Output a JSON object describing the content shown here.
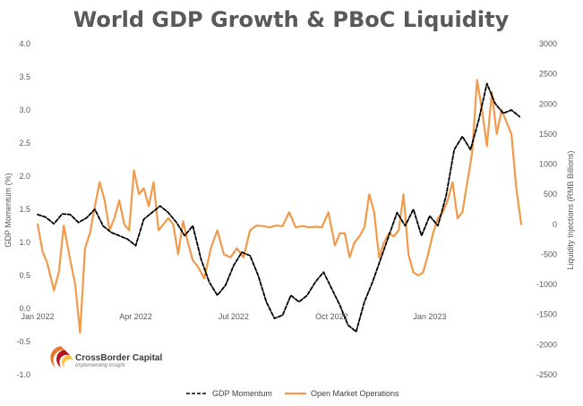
{
  "chart_data": {
    "type": "line",
    "title": "World GDP Growth & PBoC Liquidity",
    "ylabel_left": "GDP Momentum (%)",
    "ylabel_right": "Liquidity Injections (RMB Billions)",
    "ylim_left": [
      -1.0,
      4.0
    ],
    "ylim_right": [
      -2500,
      3000
    ],
    "yticks_left": [
      "4.0",
      "3.5",
      "3.0",
      "2.5",
      "2.0",
      "1.5",
      "1.0",
      "0.5",
      "0.0",
      "-0.5",
      "-1.0"
    ],
    "yticks_right": [
      "3000",
      "2500",
      "2000",
      "1500",
      "1000",
      "500",
      "0",
      "-500",
      "-1000",
      "-1500",
      "-2000",
      "-2500"
    ],
    "x_ticks": [
      "Jan 2022",
      "Apr 2022",
      "Jul 2022",
      "Oct 2022",
      "Jan 2023"
    ],
    "grid": false,
    "legend_position": "bottom",
    "series": [
      {
        "name": "GDP Momentum",
        "axis": "left",
        "color": "#000000",
        "style": "dashed",
        "points": [
          [
            0,
            1.42
          ],
          [
            0.25,
            1.38
          ],
          [
            0.5,
            1.28
          ],
          [
            0.75,
            1.43
          ],
          [
            1,
            1.42
          ],
          [
            1.25,
            1.3
          ],
          [
            1.5,
            1.37
          ],
          [
            1.75,
            1.5
          ],
          [
            2,
            1.25
          ],
          [
            2.25,
            1.15
          ],
          [
            2.5,
            1.1
          ],
          [
            2.75,
            1.05
          ],
          [
            3,
            0.95
          ],
          [
            3.25,
            1.35
          ],
          [
            3.5,
            1.45
          ],
          [
            3.75,
            1.55
          ],
          [
            4,
            1.45
          ],
          [
            4.25,
            1.3
          ],
          [
            4.5,
            1.1
          ],
          [
            4.75,
            1.25
          ],
          [
            5,
            0.75
          ],
          [
            5.25,
            0.4
          ],
          [
            5.5,
            0.2
          ],
          [
            5.75,
            0.35
          ],
          [
            6,
            0.65
          ],
          [
            6.25,
            0.85
          ],
          [
            6.5,
            0.8
          ],
          [
            6.75,
            0.5
          ],
          [
            7,
            0.1
          ],
          [
            7.25,
            -0.15
          ],
          [
            7.5,
            -0.1
          ],
          [
            7.75,
            0.2
          ],
          [
            8,
            0.1
          ],
          [
            8.25,
            0.2
          ],
          [
            8.5,
            0.4
          ],
          [
            8.75,
            0.55
          ],
          [
            9,
            0.3
          ],
          [
            9.25,
            0.05
          ],
          [
            9.5,
            -0.25
          ],
          [
            9.75,
            -0.35
          ],
          [
            10,
            0.1
          ],
          [
            10.25,
            0.4
          ],
          [
            10.5,
            0.75
          ],
          [
            10.75,
            1.1
          ],
          [
            11,
            1.45
          ],
          [
            11.25,
            1.25
          ],
          [
            11.5,
            1.5
          ],
          [
            11.75,
            1.1
          ],
          [
            12,
            1.4
          ],
          [
            12.25,
            1.25
          ],
          [
            12.5,
            1.7
          ],
          [
            12.75,
            2.4
          ],
          [
            13,
            2.6
          ],
          [
            13.25,
            2.4
          ],
          [
            13.5,
            2.85
          ],
          [
            13.75,
            3.4
          ],
          [
            14,
            3.1
          ],
          [
            14.25,
            2.95
          ],
          [
            14.5,
            3.0
          ],
          [
            14.75,
            2.9
          ]
        ]
      },
      {
        "name": "Open Market Operations",
        "axis": "right",
        "color": "#F2994A",
        "style": "solid",
        "points": [
          [
            0,
            0
          ],
          [
            0.15,
            -450
          ],
          [
            0.3,
            -650
          ],
          [
            0.5,
            -1100
          ],
          [
            0.65,
            -800
          ],
          [
            0.8,
            -20
          ],
          [
            1,
            -600
          ],
          [
            1.15,
            -1000
          ],
          [
            1.3,
            -1800
          ],
          [
            1.45,
            -400
          ],
          [
            1.6,
            -150
          ],
          [
            1.75,
            300
          ],
          [
            1.9,
            700
          ],
          [
            2.05,
            400
          ],
          [
            2.2,
            -100
          ],
          [
            2.35,
            100
          ],
          [
            2.5,
            400
          ],
          [
            2.65,
            0
          ],
          [
            2.8,
            -100
          ],
          [
            2.95,
            900
          ],
          [
            3.1,
            500
          ],
          [
            3.25,
            600
          ],
          [
            3.4,
            300
          ],
          [
            3.55,
            700
          ],
          [
            3.7,
            -100
          ],
          [
            3.85,
            0
          ],
          [
            4,
            100
          ],
          [
            4.15,
            0
          ],
          [
            4.3,
            -500
          ],
          [
            4.45,
            50
          ],
          [
            4.6,
            -300
          ],
          [
            4.75,
            -600
          ],
          [
            4.9,
            -700
          ],
          [
            5.1,
            -900
          ],
          [
            5.3,
            -400
          ],
          [
            5.5,
            -100
          ],
          [
            5.7,
            -500
          ],
          [
            5.9,
            -550
          ],
          [
            6.1,
            -400
          ],
          [
            6.3,
            -550
          ],
          [
            6.5,
            -100
          ],
          [
            6.7,
            -20
          ],
          [
            6.9,
            -30
          ],
          [
            7.1,
            -50
          ],
          [
            7.3,
            -20
          ],
          [
            7.5,
            -30
          ],
          [
            7.7,
            200
          ],
          [
            7.9,
            -50
          ],
          [
            8.1,
            -30
          ],
          [
            8.3,
            -50
          ],
          [
            8.5,
            -40
          ],
          [
            8.7,
            -50
          ],
          [
            8.9,
            200
          ],
          [
            9.1,
            -350
          ],
          [
            9.25,
            -150
          ],
          [
            9.4,
            -150
          ],
          [
            9.55,
            -550
          ],
          [
            9.7,
            -300
          ],
          [
            9.85,
            -200
          ],
          [
            10,
            -50
          ],
          [
            10.15,
            500
          ],
          [
            10.3,
            200
          ],
          [
            10.45,
            -550
          ],
          [
            10.6,
            -300
          ],
          [
            10.75,
            -150
          ],
          [
            10.9,
            -200
          ],
          [
            11.05,
            -100
          ],
          [
            11.2,
            500
          ],
          [
            11.35,
            -500
          ],
          [
            11.5,
            -800
          ],
          [
            11.65,
            -850
          ],
          [
            11.8,
            -800
          ],
          [
            11.95,
            -500
          ],
          [
            12.1,
            -150
          ],
          [
            12.25,
            100
          ],
          [
            12.4,
            200
          ],
          [
            12.55,
            400
          ],
          [
            12.7,
            700
          ],
          [
            12.85,
            100
          ],
          [
            13,
            200
          ],
          [
            13.15,
            700
          ],
          [
            13.3,
            1200
          ],
          [
            13.45,
            2400
          ],
          [
            13.6,
            1900
          ],
          [
            13.75,
            1300
          ],
          [
            13.9,
            2200
          ],
          [
            14.05,
            1500
          ],
          [
            14.2,
            1900
          ],
          [
            14.35,
            1700
          ],
          [
            14.5,
            1500
          ],
          [
            14.65,
            600
          ],
          [
            14.8,
            0
          ]
        ]
      }
    ]
  },
  "legend": {
    "gdp_label": "GDP Momentum",
    "omo_label": "Open Market Operations"
  },
  "logo": {
    "name": "CrossBorder Capital",
    "tagline": "Implementing Insight"
  }
}
